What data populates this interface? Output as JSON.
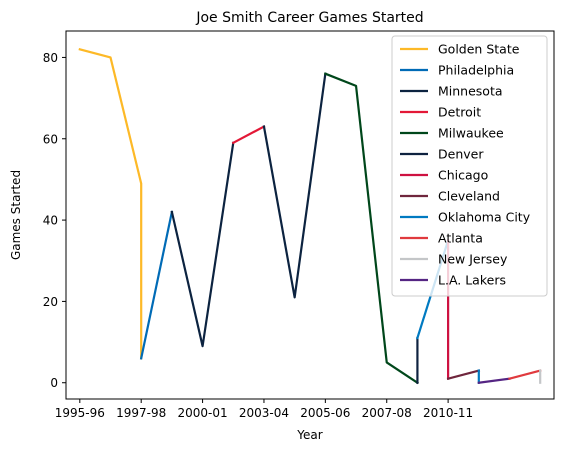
{
  "chart_data": {
    "type": "line",
    "title": "Joe Smith  Career Games Started",
    "xlabel": "Year",
    "ylabel": "Games Started",
    "xlim": [
      -0.45,
      15.45
    ],
    "ylim": [
      -4,
      86.5
    ],
    "x_ticks": [
      {
        "x": 0,
        "label": "1995-96"
      },
      {
        "x": 2,
        "label": "1997-98"
      },
      {
        "x": 4,
        "label": "2000-01"
      },
      {
        "x": 6,
        "label": "2003-04"
      },
      {
        "x": 8,
        "label": "2005-06"
      },
      {
        "x": 10,
        "label": "2007-08"
      },
      {
        "x": 12,
        "label": "2010-11"
      }
    ],
    "y_ticks": [
      0,
      20,
      40,
      60,
      80
    ],
    "grid": false,
    "legend_position": "top-right",
    "series": [
      {
        "name": "Golden State",
        "color": "#FDB927",
        "points": [
          [
            0,
            82
          ],
          [
            1,
            80
          ],
          [
            2,
            49
          ],
          [
            2,
            6
          ]
        ]
      },
      {
        "name": "Philadelphia",
        "color": "#006BB6",
        "points": [
          [
            2,
            6
          ],
          [
            3,
            42
          ]
        ]
      },
      {
        "name": "Minnesota",
        "color": "#0C2340",
        "points": [
          [
            3,
            42
          ],
          [
            4,
            9
          ],
          [
            5,
            59
          ]
        ]
      },
      {
        "name": "Detroit",
        "color": "#E31837",
        "points": [
          [
            5,
            59
          ],
          [
            6,
            63
          ]
        ]
      },
      {
        "name": "Minnesota",
        "color": "#0C2340",
        "points": [
          [
            6,
            63
          ],
          [
            7,
            21
          ],
          [
            8,
            76
          ]
        ]
      },
      {
        "name": "Milwaukee",
        "color": "#00471B",
        "points": [
          [
            8,
            76
          ],
          [
            9,
            73
          ],
          [
            10,
            5
          ],
          [
            11,
            0
          ]
        ]
      },
      {
        "name": "Denver",
        "color": "#0E2240",
        "points": [
          [
            11,
            0
          ],
          [
            11,
            11
          ]
        ]
      },
      {
        "name": "Oklahoma City",
        "color": "#007AC1",
        "points": [
          [
            11,
            11
          ],
          [
            12,
            35
          ]
        ]
      },
      {
        "name": "Chicago",
        "color": "#CE1141",
        "points": [
          [
            12,
            35
          ],
          [
            12,
            1
          ]
        ]
      },
      {
        "name": "Cleveland",
        "color": "#6F263D",
        "points": [
          [
            12,
            1
          ],
          [
            13,
            3
          ]
        ]
      },
      {
        "name": "Oklahoma City",
        "color": "#007AC1",
        "points": [
          [
            13,
            3
          ],
          [
            13,
            0
          ]
        ]
      },
      {
        "name": "L.A. Lakers",
        "color": "#552583",
        "points": [
          [
            13,
            0
          ],
          [
            14,
            1
          ]
        ]
      },
      {
        "name": "Atlanta",
        "color": "#E03A3E",
        "points": [
          [
            14,
            1
          ],
          [
            15,
            3
          ]
        ]
      },
      {
        "name": "New Jersey",
        "color": "#C4C6C8",
        "points": [
          [
            15,
            3
          ],
          [
            15,
            0
          ]
        ]
      }
    ],
    "legend": [
      {
        "label": "Golden State",
        "color": "#FDB927"
      },
      {
        "label": "Philadelphia",
        "color": "#006BB6"
      },
      {
        "label": "Minnesota",
        "color": "#0C2340"
      },
      {
        "label": "Detroit",
        "color": "#E31837"
      },
      {
        "label": "Milwaukee",
        "color": "#00471B"
      },
      {
        "label": "Denver",
        "color": "#0E2240"
      },
      {
        "label": "Chicago",
        "color": "#CE1141"
      },
      {
        "label": "Cleveland",
        "color": "#6F263D"
      },
      {
        "label": "Oklahoma City",
        "color": "#007AC1"
      },
      {
        "label": "Atlanta",
        "color": "#E03A3E"
      },
      {
        "label": "New Jersey",
        "color": "#C4C6C8"
      },
      {
        "label": "L.A. Lakers",
        "color": "#552583"
      }
    ]
  }
}
